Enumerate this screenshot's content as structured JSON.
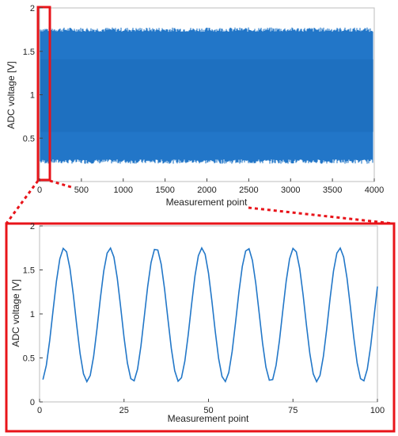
{
  "chart_data": [
    {
      "type": "line",
      "xlabel": "Measurement point",
      "ylabel": "ADC voltage [V]",
      "xlim": [
        0,
        4000
      ],
      "ylim": [
        0,
        2
      ],
      "xticks": [
        0,
        500,
        1000,
        1500,
        2000,
        2500,
        3000,
        3500,
        4000
      ],
      "yticks": [
        0.5,
        1,
        1.5,
        2
      ],
      "yticklabels": [
        "0.5",
        "1",
        "1.5",
        "2"
      ],
      "xticklabels": [
        "0",
        "500",
        "1000",
        "1500",
        "2000",
        "2500",
        "3000",
        "3500",
        "4000"
      ],
      "series": [
        {
          "signal": "sinusoid",
          "center": 0.99,
          "amplitude": 0.76,
          "period_points": 13.6,
          "x_range": [
            0,
            4000
          ]
        }
      ],
      "highlight_window": [
        0,
        100
      ],
      "highlight_color": "#e8141a",
      "line_color": "#2277c8",
      "grid": false
    },
    {
      "type": "line",
      "xlabel": "Measurement point",
      "ylabel": "ADC voltage [V]",
      "xlim": [
        0,
        100
      ],
      "ylim": [
        0,
        2
      ],
      "xticks": [
        0,
        25,
        50,
        75,
        100
      ],
      "xticklabels": [
        "0",
        "25",
        "50",
        "75",
        "100"
      ],
      "yticks": [
        0,
        0.5,
        1,
        1.5,
        2
      ],
      "yticklabels": [
        "0",
        "0.5",
        "1",
        "1.5",
        "2"
      ],
      "series": [
        {
          "signal": "sinusoid",
          "center": 0.99,
          "amplitude": 0.76,
          "period_points": 13.6,
          "x_range": [
            1,
            100
          ]
        }
      ],
      "line_color": "#2277c8",
      "frame_color": "#e8141a",
      "grid": false
    }
  ]
}
